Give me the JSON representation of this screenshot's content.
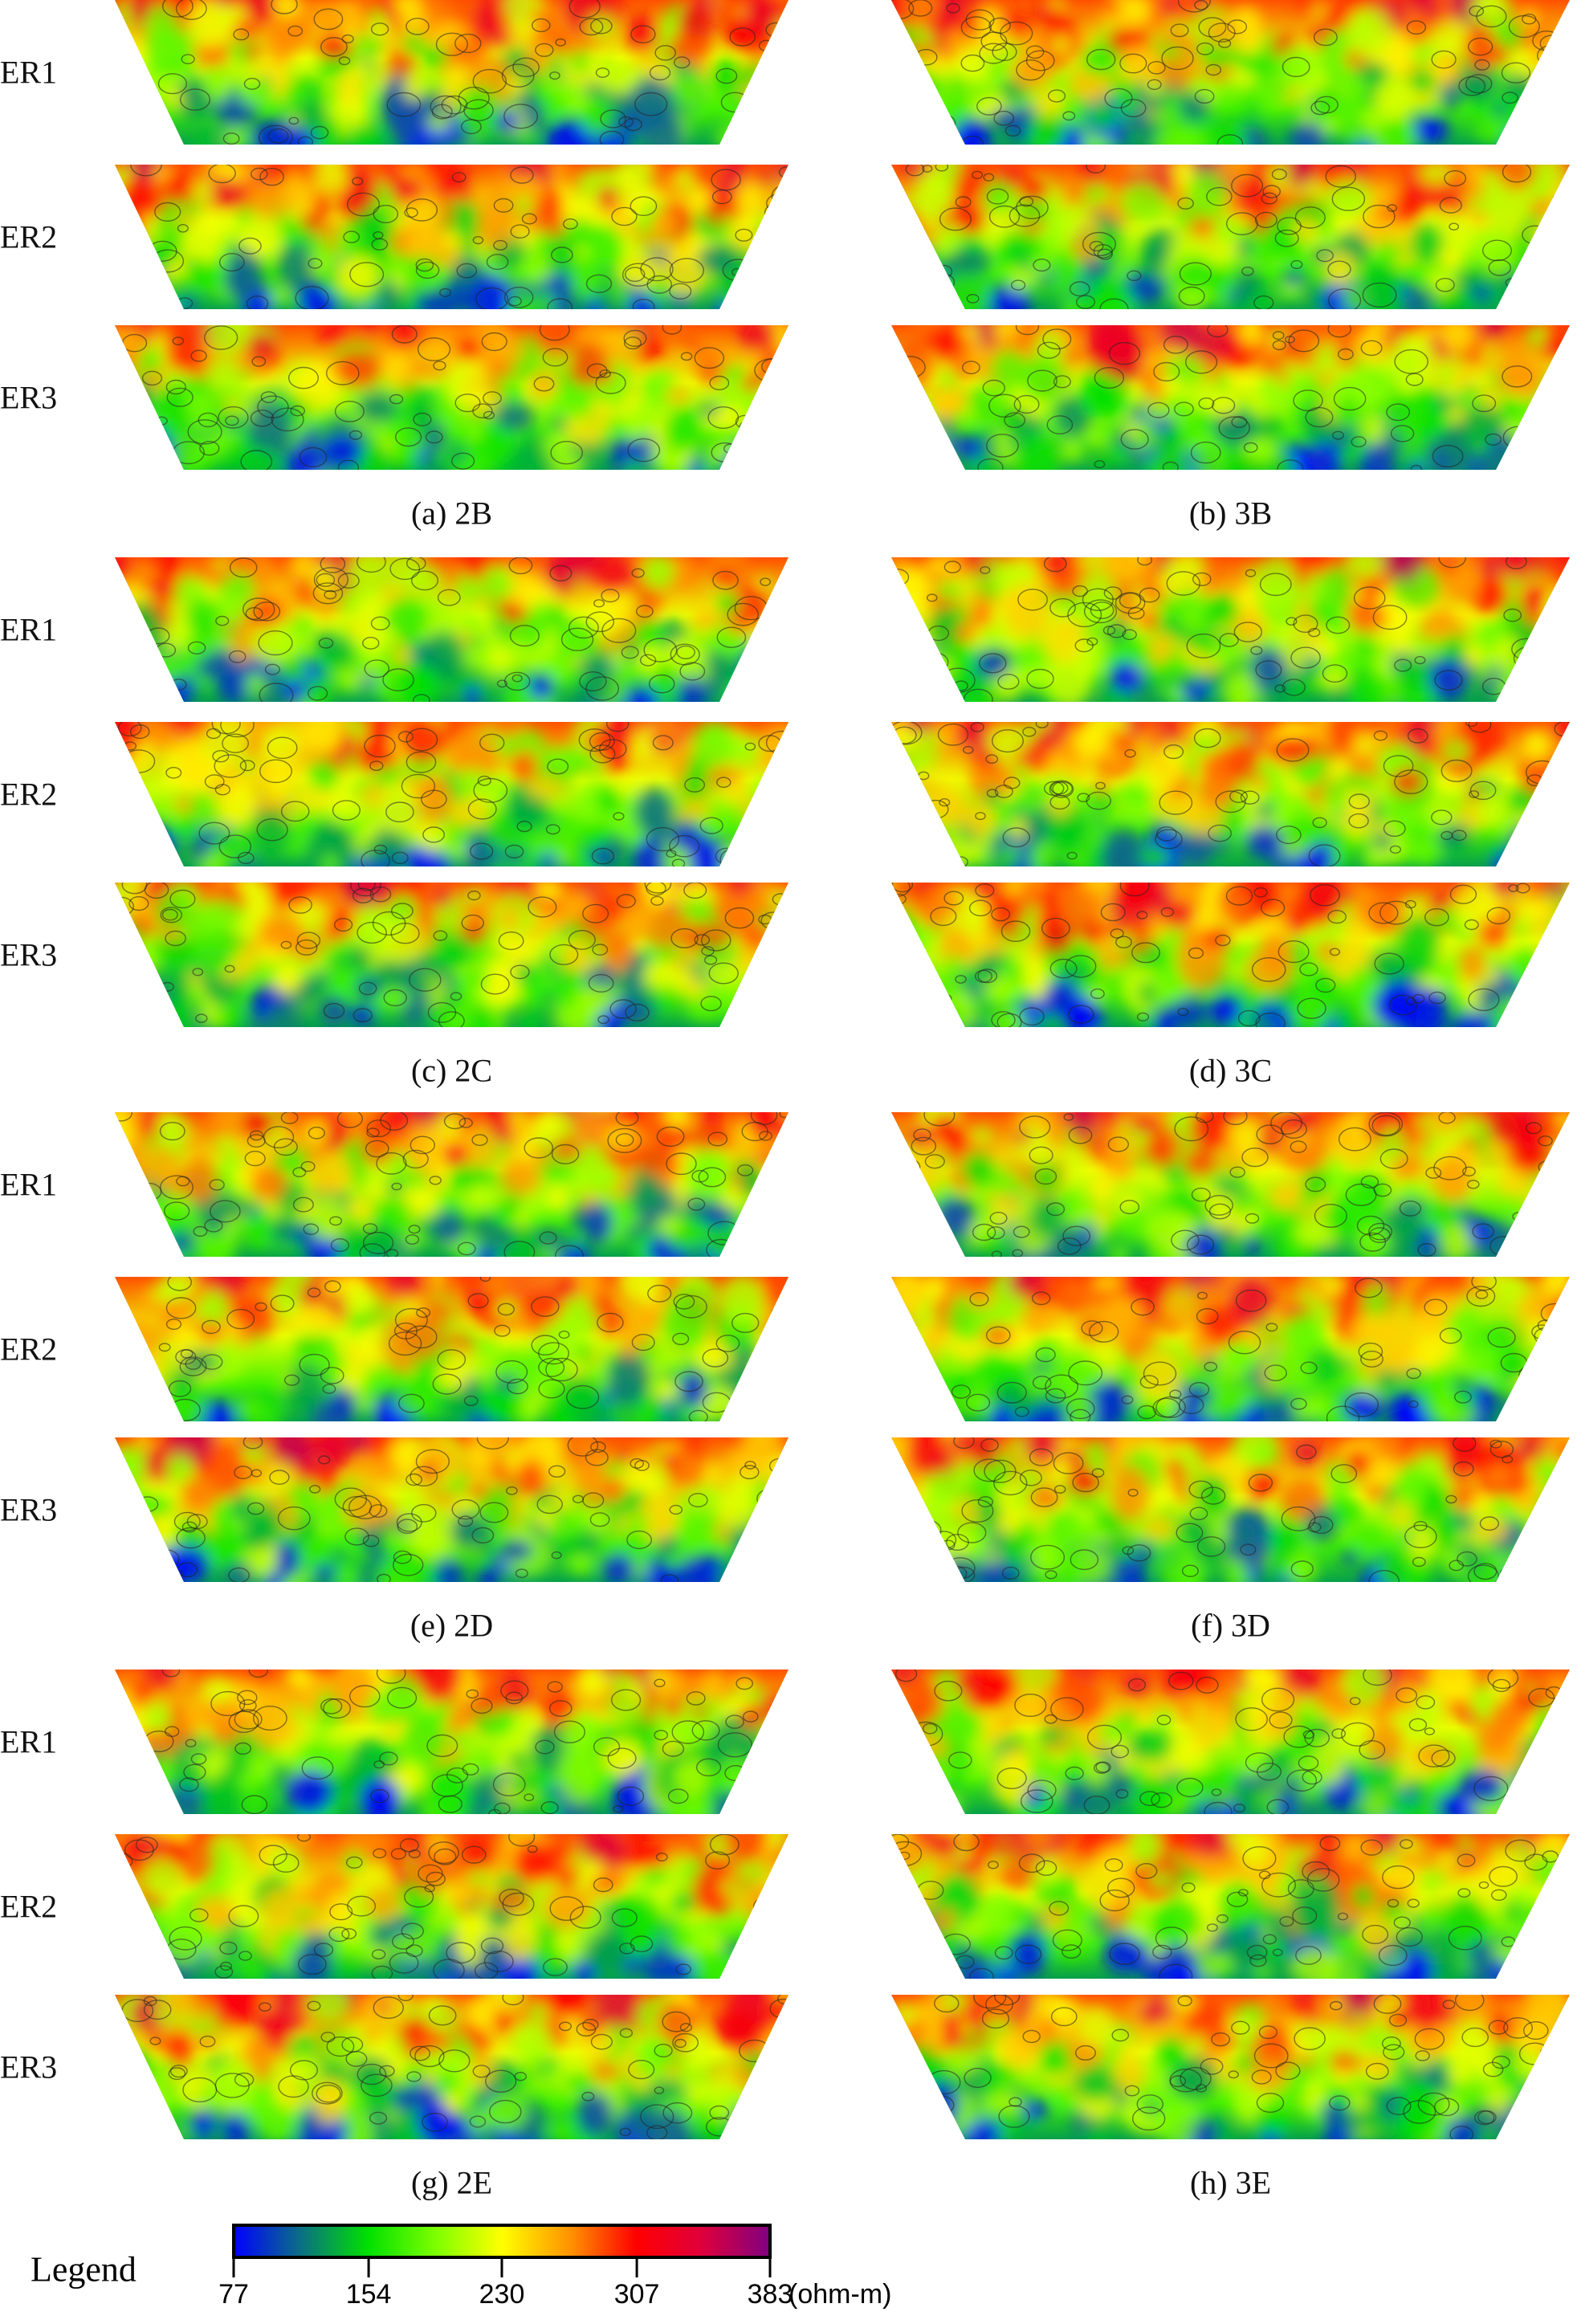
{
  "chart_data": {
    "type": "heatmap",
    "title": "",
    "row_labels": [
      "ER1",
      "ER2",
      "ER3"
    ],
    "panels": [
      {
        "caption": "(a)  2B",
        "column": "left",
        "group": 0
      },
      {
        "caption": "(b)  3B",
        "column": "right",
        "group": 0
      },
      {
        "caption": "(c)  2C",
        "column": "left",
        "group": 1
      },
      {
        "caption": "(d)  3C",
        "column": "right",
        "group": 1
      },
      {
        "caption": "(e)  2D",
        "column": "left",
        "group": 2
      },
      {
        "caption": "(f)  3D",
        "column": "right",
        "group": 2
      },
      {
        "caption": "(g)  2E",
        "column": "left",
        "group": 3
      },
      {
        "caption": "(h)  3E",
        "column": "right",
        "group": 3
      }
    ],
    "colorbar": {
      "label": "Legend",
      "unit": "(ohm-m)",
      "range": [
        77,
        383
      ],
      "ticks": [
        "77",
        "154",
        "230",
        "307",
        "383"
      ],
      "tick_values": [
        77,
        154,
        230,
        307,
        383
      ],
      "colors": [
        "#0000ff",
        "#00e000",
        "#ffff00",
        "#ff0000",
        "#800080"
      ]
    },
    "profile_note": "high resistivity near surface, low at depth"
  }
}
